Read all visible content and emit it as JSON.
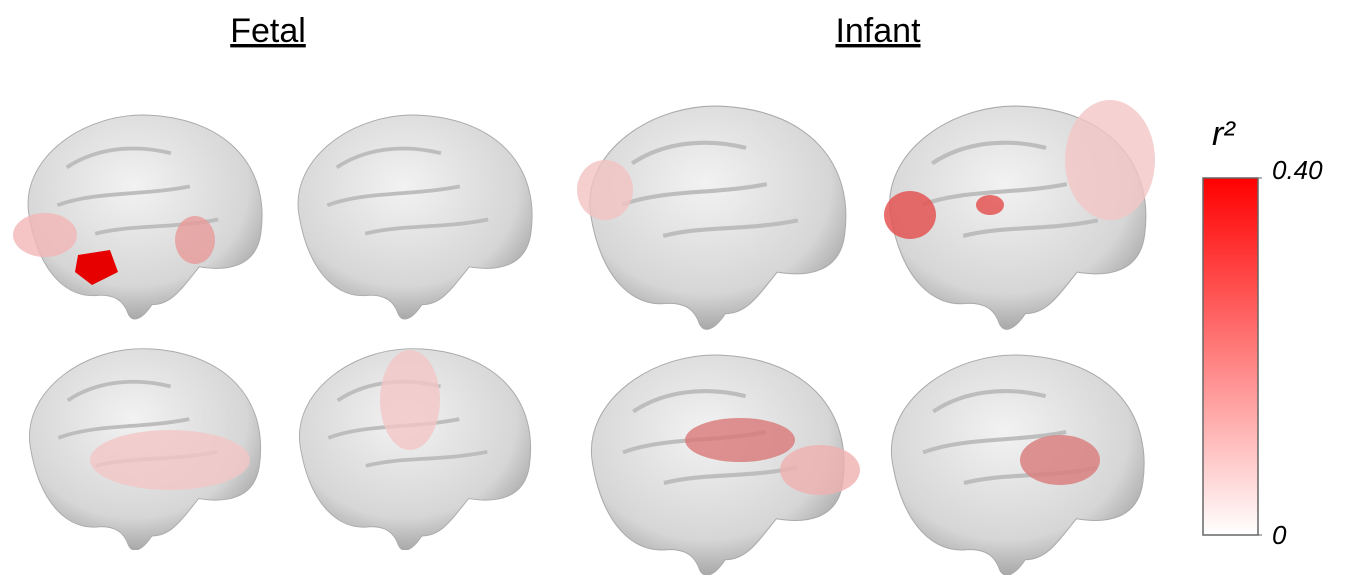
{
  "panels": [
    {
      "title": "Fetal"
    },
    {
      "title": "Infant"
    }
  ],
  "colorbar": {
    "label": "r²",
    "lim": [
      0,
      0.4
    ],
    "ticks": [
      {
        "value": 0.4,
        "label": "0.40"
      },
      0
    ],
    "colors": [
      "#ffffff",
      "#ff0000"
    ]
  }
}
